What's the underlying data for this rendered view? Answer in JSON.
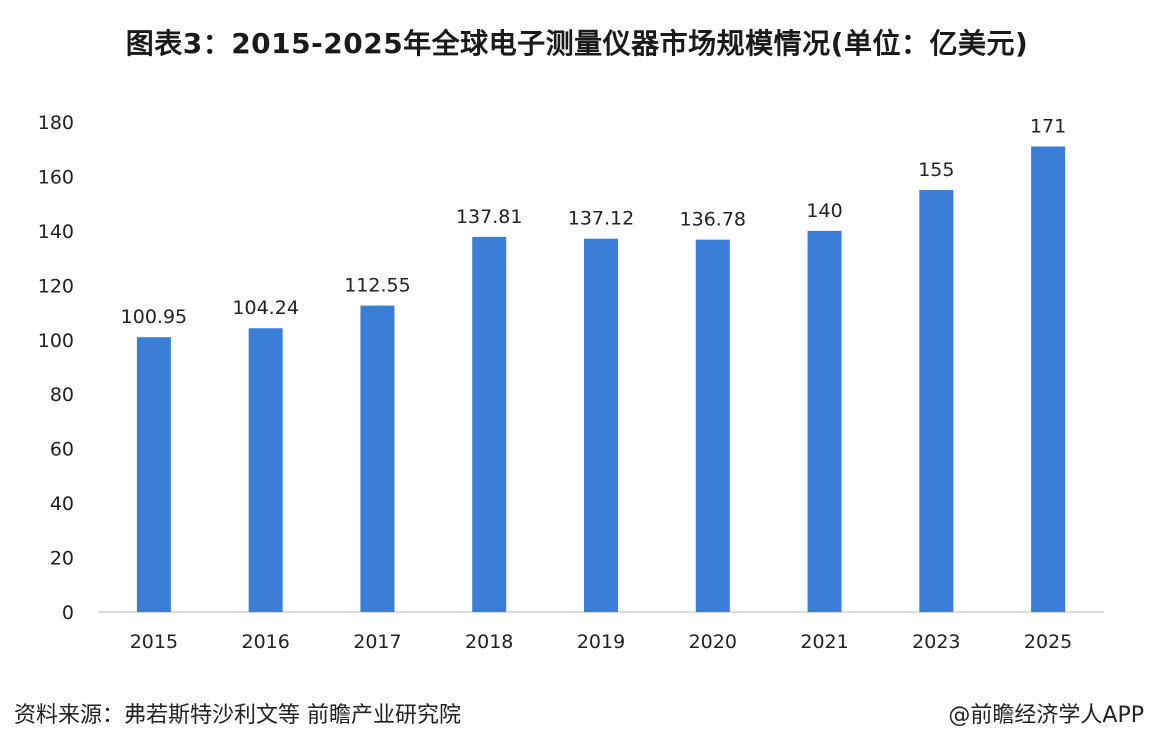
{
  "title": "图表3：2015-2025年全球电子测量仪器市场规模情况(单位：亿美元)",
  "source": "资料来源：弗若斯特沙利文等 前瞻产业研究院",
  "credit": "@前瞻经济学人APP",
  "colors": {
    "bar": "#3a7ed8",
    "axis": "#d0d0d0"
  },
  "chart_data": {
    "type": "bar",
    "title": "图表3：2015-2025年全球电子测量仪器市场规模情况(单位：亿美元)",
    "xlabel": "",
    "ylabel": "",
    "categories": [
      "2015",
      "2016",
      "2017",
      "2018",
      "2019",
      "2020",
      "2021",
      "2023",
      "2025"
    ],
    "values": [
      100.95,
      104.24,
      112.55,
      137.81,
      137.12,
      136.78,
      140,
      155,
      171
    ],
    "value_labels": [
      "100.95",
      "104.24",
      "112.55",
      "137.81",
      "137.12",
      "136.78",
      "140",
      "155",
      "171"
    ],
    "ylim": [
      0,
      180
    ],
    "yticks": [
      0,
      20,
      40,
      60,
      80,
      100,
      120,
      140,
      160,
      180
    ],
    "grid": false,
    "legend": "none"
  }
}
